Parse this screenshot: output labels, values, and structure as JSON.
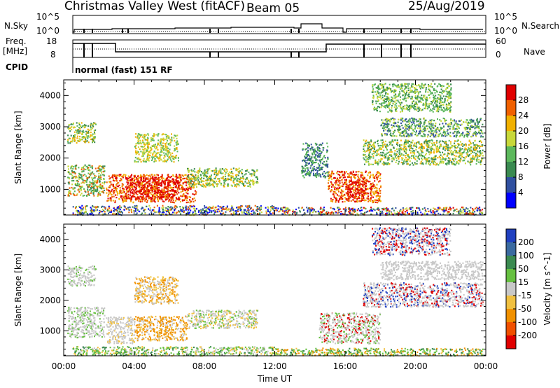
{
  "header": {
    "station": "Christmas Valley West (fitACF)",
    "beam": "Beam 05",
    "date": "25/Aug/2019"
  },
  "top_panels": {
    "nsky_label": "N.Sky",
    "nsky_ticks": [
      "10^5",
      "10^0"
    ],
    "nsearch_label": "N.Search",
    "nsearch_ticks": [
      "10^5",
      "10^0"
    ],
    "freq_label_1": "Freq.",
    "freq_label_2": "[MHz]",
    "freq_ticks": [
      "18",
      "8"
    ],
    "nave_label": "Nave",
    "nave_ticks": [
      "60",
      "0"
    ],
    "cpid_label": "CPID",
    "cpid_text": "normal (fast) 151 RF"
  },
  "chart_data": [
    {
      "type": "heatmap",
      "title": "",
      "xlabel": "Time UT",
      "ylabel": "Slant Range [km]",
      "x_ticks": [
        "00:00",
        "04:00",
        "08:00",
        "12:00",
        "16:00",
        "20:00",
        "00:00"
      ],
      "y_ticks": [
        "1000",
        "2000",
        "3000",
        "4000"
      ],
      "ylim": [
        180,
        4500
      ],
      "colorbar_label": "Power [dB]",
      "colorbar_ticks": [
        "4",
        "8",
        "12",
        "16",
        "20",
        "24",
        "28"
      ],
      "colorbar_colors": [
        "#0000ff",
        "#3050a0",
        "#3a8a50",
        "#5cb85c",
        "#c8d83a",
        "#f0b000",
        "#f06000",
        "#e00000"
      ],
      "regions": [
        {
          "t0": 0.2,
          "t1": 1.8,
          "r0": 2500,
          "r1": 3150,
          "c": [
            2,
            3,
            4,
            5
          ]
        },
        {
          "t0": 0.2,
          "t1": 2.3,
          "r0": 800,
          "r1": 1800,
          "c": [
            2,
            3,
            4,
            6
          ]
        },
        {
          "t0": 2.4,
          "t1": 7.5,
          "r0": 600,
          "r1": 1500,
          "c": [
            5,
            6,
            7
          ]
        },
        {
          "t0": 3.5,
          "t1": 6.5,
          "r0": 700,
          "r1": 1400,
          "c": [
            6,
            7,
            7
          ]
        },
        {
          "t0": 7.0,
          "t1": 11.0,
          "r0": 1100,
          "r1": 1700,
          "c": [
            2,
            3,
            4,
            5
          ]
        },
        {
          "t0": 4.0,
          "t1": 6.5,
          "r0": 1900,
          "r1": 2800,
          "c": [
            3,
            4,
            5
          ]
        },
        {
          "t0": 0.5,
          "t1": 12.0,
          "r0": 200,
          "r1": 500,
          "c": [
            0,
            1,
            2,
            4,
            6
          ]
        },
        {
          "t0": 15.0,
          "t1": 18.0,
          "r0": 600,
          "r1": 1600,
          "c": [
            5,
            6,
            7
          ]
        },
        {
          "t0": 16.0,
          "t1": 17.2,
          "r0": 700,
          "r1": 1300,
          "c": [
            7,
            7,
            6
          ]
        },
        {
          "t0": 17.0,
          "t1": 23.8,
          "r0": 1800,
          "r1": 2600,
          "c": [
            2,
            3,
            4,
            5
          ]
        },
        {
          "t0": 18.0,
          "t1": 23.8,
          "r0": 2700,
          "r1": 3300,
          "c": [
            1,
            2,
            3,
            4
          ]
        },
        {
          "t0": 17.5,
          "t1": 22.0,
          "r0": 3500,
          "r1": 4400,
          "c": [
            2,
            3,
            4
          ]
        },
        {
          "t0": 13.5,
          "t1": 15.0,
          "r0": 1400,
          "r1": 2500,
          "c": [
            1,
            2,
            3
          ]
        },
        {
          "t0": 12.0,
          "t1": 23.8,
          "r0": 200,
          "r1": 450,
          "c": [
            0,
            1,
            2,
            4,
            6,
            7
          ]
        }
      ]
    },
    {
      "type": "heatmap",
      "title": "",
      "xlabel": "Time UT",
      "ylabel": "Slant Range [km]",
      "x_ticks": [
        "00:00",
        "04:00",
        "08:00",
        "12:00",
        "16:00",
        "20:00",
        "00:00"
      ],
      "y_ticks": [
        "1000",
        "2000",
        "3000",
        "4000"
      ],
      "ylim": [
        180,
        4500
      ],
      "colorbar_label": "Velocity [m s^-1]",
      "colorbar_ticks": [
        "200",
        "100",
        "50",
        "15",
        "-15",
        "-50",
        "-100",
        "-200"
      ],
      "colorbar_colors": [
        "#2040c0",
        "#3a6aa0",
        "#3a8a50",
        "#66c040",
        "#c8c8c8",
        "#f0c040",
        "#f09000",
        "#f05000",
        "#e00000"
      ],
      "regions": [
        {
          "t0": 0.2,
          "t1": 1.8,
          "r0": 2500,
          "r1": 3150,
          "c": [
            4,
            4,
            4,
            3
          ]
        },
        {
          "t0": 0.2,
          "t1": 2.3,
          "r0": 800,
          "r1": 1800,
          "c": [
            4,
            4,
            4,
            3
          ]
        },
        {
          "t0": 2.4,
          "t1": 4.0,
          "r0": 600,
          "r1": 1500,
          "c": [
            4,
            4,
            4,
            5
          ]
        },
        {
          "t0": 4.0,
          "t1": 7.0,
          "r0": 700,
          "r1": 1500,
          "c": [
            5,
            6,
            6,
            4
          ]
        },
        {
          "t0": 7.0,
          "t1": 11.0,
          "r0": 1100,
          "r1": 1700,
          "c": [
            4,
            4,
            5,
            3
          ]
        },
        {
          "t0": 4.0,
          "t1": 6.5,
          "r0": 1900,
          "r1": 2800,
          "c": [
            5,
            4,
            6
          ]
        },
        {
          "t0": 0.5,
          "t1": 12.0,
          "r0": 200,
          "r1": 500,
          "c": [
            3,
            3,
            2,
            4,
            5
          ]
        },
        {
          "t0": 14.5,
          "t1": 18.0,
          "r0": 600,
          "r1": 1600,
          "c": [
            4,
            4,
            4,
            3,
            8
          ]
        },
        {
          "t0": 17.0,
          "t1": 23.8,
          "r0": 1800,
          "r1": 2600,
          "c": [
            4,
            4,
            4,
            8,
            0
          ]
        },
        {
          "t0": 18.0,
          "t1": 23.8,
          "r0": 2700,
          "r1": 3300,
          "c": [
            4,
            4,
            4
          ]
        },
        {
          "t0": 17.5,
          "t1": 22.0,
          "r0": 3500,
          "r1": 4400,
          "c": [
            4,
            4,
            8,
            0
          ]
        },
        {
          "t0": 12.0,
          "t1": 23.8,
          "r0": 200,
          "r1": 450,
          "c": [
            3,
            3,
            2,
            5,
            6
          ]
        }
      ]
    }
  ]
}
